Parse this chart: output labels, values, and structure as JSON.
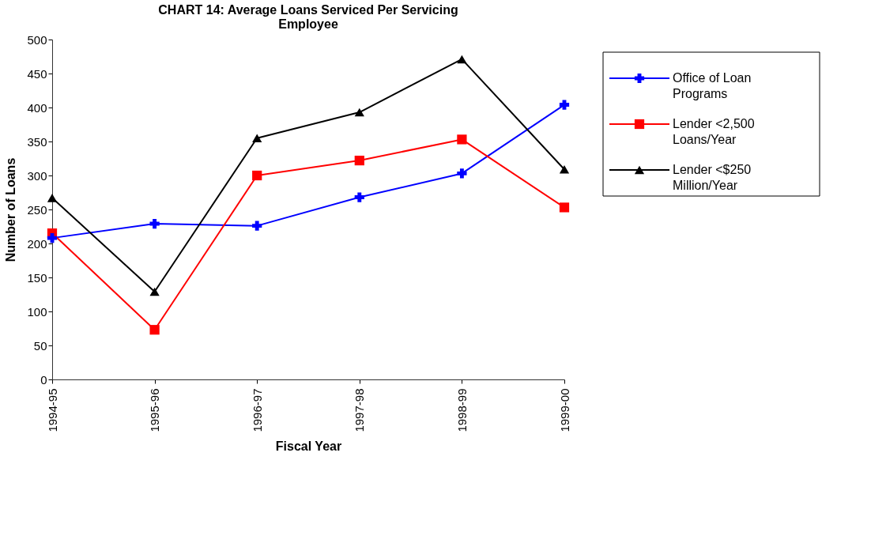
{
  "chart_data": {
    "type": "line",
    "title": "CHART 14: Average Loans Serviced Per Servicing Employee",
    "xlabel": "Fiscal Year",
    "ylabel": "Number of Loans",
    "categories": [
      "1994-95",
      "1995-96",
      "1996-97",
      "1997-98",
      "1998-99",
      "1999-00"
    ],
    "series": [
      {
        "name": "Office of Loan Programs",
        "color": "#0000ff",
        "marker": "cross",
        "values": [
          208,
          229,
          226,
          268,
          303,
          404
        ]
      },
      {
        "name": "Lender <2,500 Loans/Year",
        "color": "#ff0000",
        "marker": "square",
        "values": [
          215,
          73,
          300,
          322,
          353,
          253
        ]
      },
      {
        "name": "Lender <$250 Million/Year",
        "color": "#000000",
        "marker": "triangle",
        "values": [
          267,
          129,
          355,
          393,
          471,
          309
        ]
      }
    ],
    "ylim": [
      0,
      500
    ],
    "yticks": [
      0,
      50,
      100,
      150,
      200,
      250,
      300,
      350,
      400,
      450,
      500
    ],
    "grid": false,
    "legend": "top right",
    "line_style": "solid"
  }
}
